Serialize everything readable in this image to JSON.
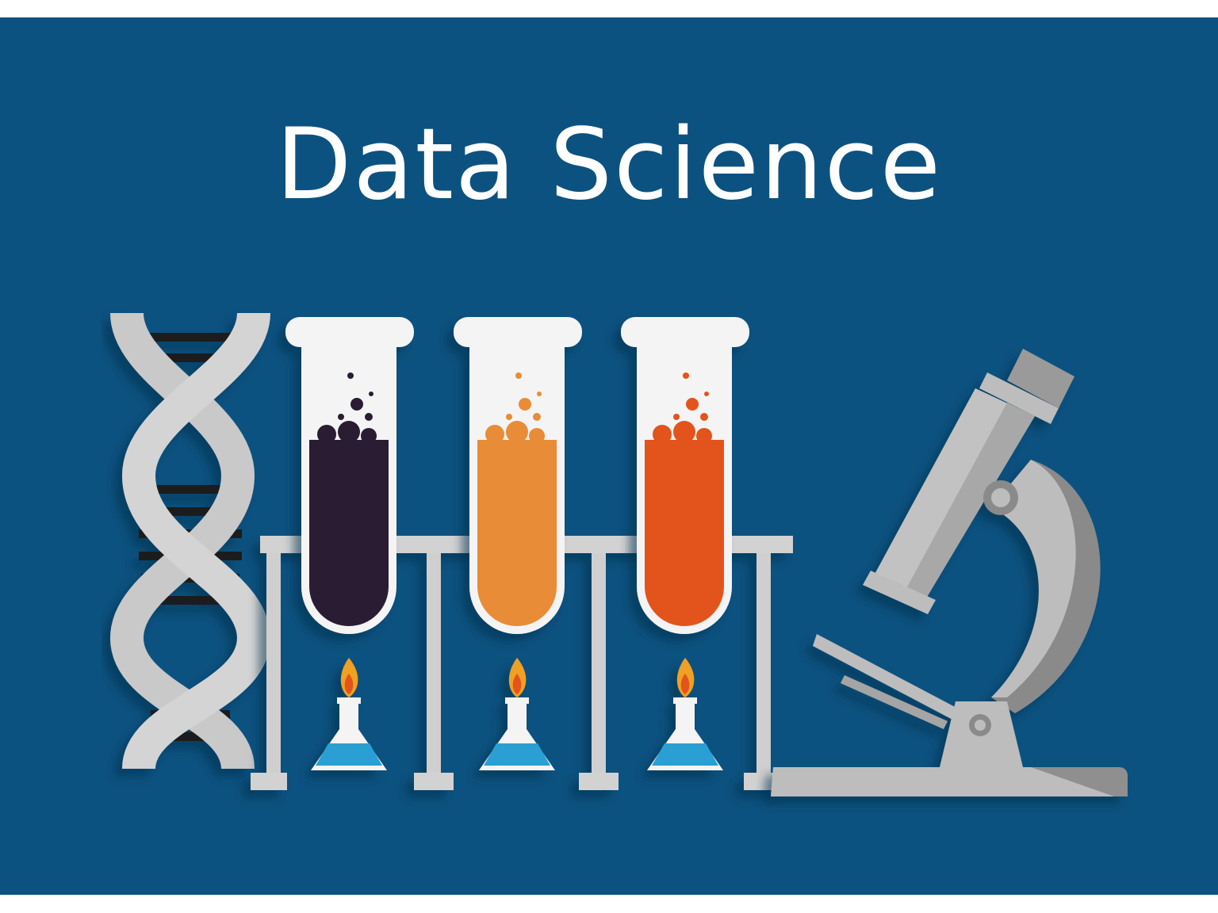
{
  "headline": {
    "title": "Data Science"
  },
  "illustration": {
    "items": [
      "dna-helix-icon",
      "test-tube-rack",
      "burner-flask-icon",
      "microscope-icon"
    ],
    "colors": {
      "background": "#0c5280",
      "helix": "#c9c9c9",
      "rack": "#d2d2d2",
      "liquid_dark": "#2a1d33",
      "liquid_orange": "#e88c38",
      "liquid_red": "#e3521a",
      "flask_liquid": "#2a9fd4",
      "flame": "#f0a023",
      "microscope": "#bdbdbd"
    }
  }
}
